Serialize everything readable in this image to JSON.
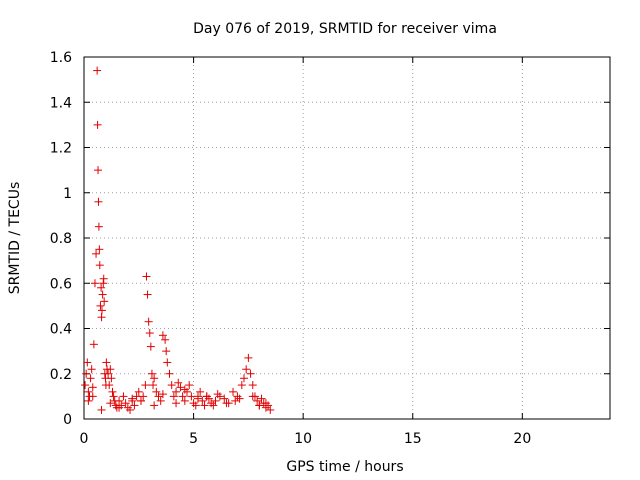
{
  "chart_data": {
    "type": "scatter",
    "title": "Day 076 of 2019, SRMTID for receiver vima",
    "xlabel": "GPS time / hours",
    "ylabel": "SRMTID / TECUs",
    "xlim": [
      0,
      24
    ],
    "ylim": [
      0,
      1.6
    ],
    "xticks": [
      0,
      5,
      10,
      15,
      20
    ],
    "xtick_labels": [
      "0",
      "5",
      "10",
      "15",
      "20"
    ],
    "yticks": [
      0,
      0.2,
      0.4,
      0.6,
      0.8,
      1,
      1.2,
      1.4,
      1.6
    ],
    "ytick_labels": [
      "0",
      "0.2",
      "0.4",
      "0.6",
      "0.8",
      "1",
      "1.2",
      "1.4",
      "1.6"
    ],
    "grid": true,
    "marker": "+",
    "marker_color": "#e00000",
    "series": [
      {
        "name": "SRMTID",
        "x": [
          0.05,
          0.1,
          0.15,
          0.2,
          0.25,
          0.3,
          0.35,
          0.4,
          0.45,
          0.5,
          0.55,
          0.6,
          0.62,
          0.64,
          0.66,
          0.68,
          0.7,
          0.72,
          0.75,
          0.78,
          0.8,
          0.82,
          0.85,
          0.88,
          0.9,
          0.92,
          0.95,
          0.98,
          1.0,
          1.02,
          1.05,
          1.1,
          1.15,
          1.2,
          1.25,
          1.3,
          1.35,
          1.4,
          1.45,
          1.5,
          1.6,
          1.7,
          1.8,
          1.9,
          2.0,
          2.1,
          2.2,
          2.3,
          2.4,
          2.5,
          2.6,
          2.7,
          2.8,
          2.85,
          2.9,
          2.95,
          3.0,
          3.05,
          3.1,
          3.15,
          3.2,
          3.3,
          3.4,
          3.5,
          3.6,
          3.7,
          3.75,
          3.8,
          3.9,
          4.0,
          4.1,
          4.2,
          4.3,
          4.4,
          4.5,
          4.6,
          4.7,
          4.8,
          4.9,
          5.0,
          5.1,
          5.2,
          5.3,
          5.4,
          5.5,
          5.6,
          5.7,
          5.8,
          5.9,
          6.0,
          6.2,
          6.4,
          6.6,
          6.8,
          7.0,
          7.2,
          7.3,
          7.4,
          7.5,
          7.6,
          7.7,
          7.8,
          7.9,
          8.0,
          8.1,
          8.2,
          8.3,
          8.4,
          8.5,
          0.2,
          0.4,
          0.8,
          1.2,
          1.6,
          2.2,
          2.6,
          3.2,
          3.6,
          4.2,
          4.6,
          5.2,
          5.6,
          6.1,
          6.5,
          6.9,
          7.1,
          7.7,
          8.0,
          8.3
        ],
        "y": [
          0.15,
          0.2,
          0.25,
          0.12,
          0.1,
          0.18,
          0.22,
          0.14,
          0.33,
          0.6,
          0.73,
          1.54,
          1.3,
          1.1,
          0.96,
          0.85,
          0.75,
          0.68,
          0.5,
          0.58,
          0.45,
          0.48,
          0.55,
          0.6,
          0.62,
          0.52,
          0.2,
          0.18,
          0.15,
          0.25,
          0.22,
          0.2,
          0.15,
          0.22,
          0.18,
          0.12,
          0.1,
          0.08,
          0.06,
          0.05,
          0.08,
          0.06,
          0.1,
          0.07,
          0.05,
          0.04,
          0.08,
          0.06,
          0.1,
          0.12,
          0.08,
          0.1,
          0.15,
          0.63,
          0.55,
          0.43,
          0.38,
          0.32,
          0.2,
          0.15,
          0.18,
          0.12,
          0.1,
          0.08,
          0.37,
          0.35,
          0.3,
          0.25,
          0.2,
          0.15,
          0.1,
          0.12,
          0.16,
          0.14,
          0.1,
          0.08,
          0.12,
          0.15,
          0.1,
          0.07,
          0.06,
          0.1,
          0.12,
          0.08,
          0.06,
          0.1,
          0.09,
          0.07,
          0.06,
          0.08,
          0.1,
          0.09,
          0.07,
          0.12,
          0.1,
          0.15,
          0.18,
          0.22,
          0.27,
          0.2,
          0.15,
          0.1,
          0.08,
          0.06,
          0.09,
          0.07,
          0.05,
          0.06,
          0.04,
          0.08,
          0.1,
          0.04,
          0.07,
          0.05,
          0.09,
          0.08,
          0.06,
          0.11,
          0.07,
          0.13,
          0.09,
          0.1,
          0.11,
          0.07,
          0.08,
          0.09,
          0.1,
          0.06,
          0.07
        ]
      }
    ]
  }
}
